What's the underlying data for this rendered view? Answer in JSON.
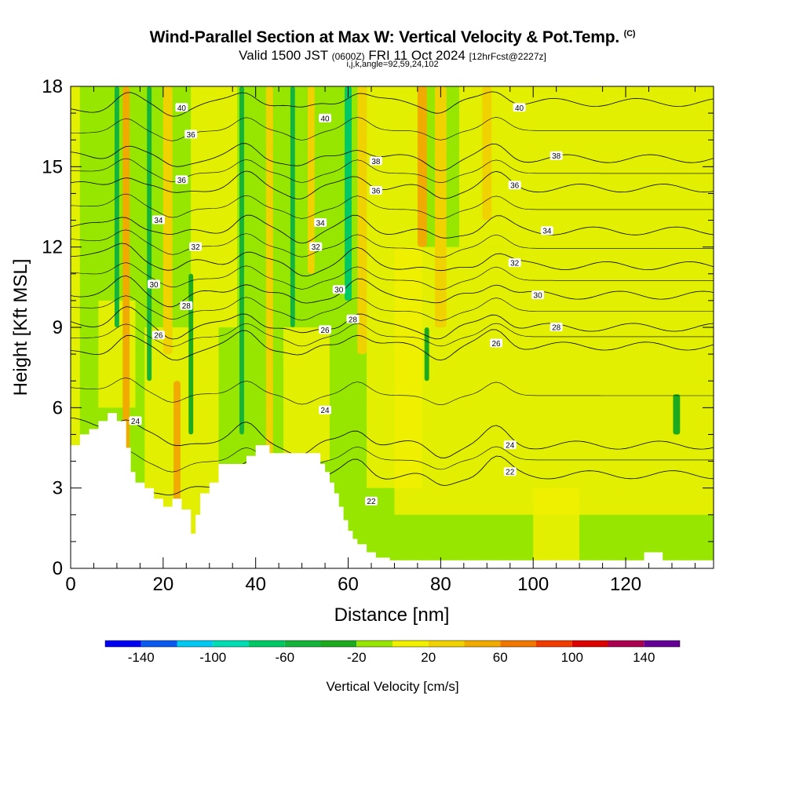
{
  "title": {
    "main": "Wind-Parallel Section at Max W: Vertical Velocity & Pot.Temp.",
    "copyright": "(C)",
    "valid_prefix": "Valid 1500 JST",
    "valid_utc": "(0600Z)",
    "valid_date": "FRI 11 Oct 2024",
    "forecast": "[12hrFcst@2227z]",
    "indices": "i,j,k,angle=92,59,24,102"
  },
  "chart_data": {
    "type": "heatmap",
    "xlabel": "Distance [nm]",
    "ylabel": "Height [Kft MSL]",
    "xlim": [
      0,
      139
    ],
    "ylim": [
      0,
      18
    ],
    "x_ticks": [
      "0",
      "20",
      "40",
      "60",
      "80",
      "100",
      "120"
    ],
    "y_ticks": [
      "0",
      "3",
      "6",
      "9",
      "12",
      "15",
      "18"
    ],
    "colorbar": {
      "title": "Vertical Velocity [cm/s]",
      "labels": [
        "-140",
        "-100",
        "-60",
        "-20",
        "20",
        "60",
        "100",
        "140"
      ],
      "bins": [
        -160,
        -140,
        -120,
        -100,
        -80,
        -60,
        -40,
        -20,
        0,
        20,
        40,
        60,
        80,
        100,
        120,
        140,
        160
      ],
      "colors": [
        "#0000f0",
        "#0a5af0",
        "#00c8f0",
        "#00dcb4",
        "#00c864",
        "#14b43c",
        "#1eaa1e",
        "#96e600",
        "#f0f000",
        "#f0d200",
        "#f0aa00",
        "#f07800",
        "#f03c00",
        "#dc0000",
        "#aa0050",
        "#640096"
      ]
    },
    "terrain": [
      [
        0,
        4.6
      ],
      [
        2,
        4.6
      ],
      [
        2,
        5.0
      ],
      [
        4,
        5.0
      ],
      [
        4,
        5.2
      ],
      [
        6,
        5.2
      ],
      [
        6,
        5.5
      ],
      [
        8,
        5.5
      ],
      [
        8,
        5.8
      ],
      [
        10,
        5.8
      ],
      [
        10,
        5.5
      ],
      [
        12,
        5.5
      ],
      [
        12,
        4.5
      ],
      [
        13,
        4.5
      ],
      [
        13,
        3.6
      ],
      [
        14,
        3.6
      ],
      [
        14,
        3.2
      ],
      [
        16,
        3.2
      ],
      [
        16,
        3.0
      ],
      [
        18,
        3.0
      ],
      [
        18,
        2.6
      ],
      [
        20,
        2.6
      ],
      [
        20,
        2.3
      ],
      [
        22,
        2.3
      ],
      [
        22,
        2.6
      ],
      [
        24,
        2.6
      ],
      [
        24,
        2.2
      ],
      [
        26,
        2.2
      ],
      [
        26,
        1.3
      ],
      [
        27,
        1.3
      ],
      [
        27,
        2.0
      ],
      [
        28,
        2.0
      ],
      [
        28,
        2.8
      ],
      [
        30,
        2.8
      ],
      [
        30,
        3.2
      ],
      [
        32,
        3.2
      ],
      [
        32,
        3.9
      ],
      [
        38,
        3.9
      ],
      [
        38,
        4.2
      ],
      [
        40,
        4.2
      ],
      [
        40,
        4.6
      ],
      [
        43,
        4.6
      ],
      [
        43,
        4.3
      ],
      [
        54,
        4.3
      ],
      [
        54,
        3.9
      ],
      [
        55,
        3.9
      ],
      [
        55,
        3.6
      ],
      [
        56,
        3.6
      ],
      [
        56,
        3.2
      ],
      [
        57,
        3.2
      ],
      [
        57,
        2.8
      ],
      [
        58,
        2.8
      ],
      [
        58,
        2.3
      ],
      [
        59,
        2.3
      ],
      [
        59,
        1.8
      ],
      [
        60,
        1.8
      ],
      [
        60,
        1.4
      ],
      [
        61,
        1.4
      ],
      [
        61,
        1.1
      ],
      [
        62,
        1.1
      ],
      [
        62,
        0.9
      ],
      [
        64,
        0.9
      ],
      [
        64,
        0.6
      ],
      [
        66,
        0.6
      ],
      [
        66,
        0.4
      ],
      [
        69,
        0.4
      ],
      [
        69,
        0.3
      ],
      [
        124,
        0.3
      ],
      [
        124,
        0.6
      ],
      [
        128,
        0.6
      ],
      [
        128,
        0.3
      ],
      [
        139,
        0.3
      ],
      [
        139,
        0
      ]
    ],
    "theta_contours": [
      {
        "label": "22",
        "y": 3.5,
        "y0": 2.0
      },
      {
        "label": "24",
        "y": 4.6,
        "y0": 5.5
      },
      {
        "label": "26",
        "y": 8.3,
        "y0": 8.0
      },
      {
        "label": "28",
        "y": 9.0,
        "y0": 9.2
      },
      {
        "label": "30",
        "y": 10.2,
        "y0": 10.3
      },
      {
        "label": "32",
        "y": 11.3,
        "y0": 11.8
      },
      {
        "label": "34",
        "y": 12.6,
        "y0": 12.8
      },
      {
        "label": "36",
        "y": 14.2,
        "y0": 14.3
      },
      {
        "label": "38",
        "y": 15.3,
        "y0": 15.4
      },
      {
        "label": "40",
        "y": 17.4,
        "y0": 17.1
      }
    ],
    "contour_labels": [
      {
        "t": "40",
        "x": 24,
        "y": 17.2
      },
      {
        "t": "36",
        "x": 26,
        "y": 16.2
      },
      {
        "t": "36",
        "x": 24,
        "y": 14.5
      },
      {
        "t": "34",
        "x": 19,
        "y": 13.0
      },
      {
        "t": "32",
        "x": 27,
        "y": 12.0
      },
      {
        "t": "30",
        "x": 18,
        "y": 10.6
      },
      {
        "t": "28",
        "x": 25,
        "y": 9.8
      },
      {
        "t": "26",
        "x": 19,
        "y": 8.7
      },
      {
        "t": "24",
        "x": 14,
        "y": 5.5
      },
      {
        "t": "40",
        "x": 55,
        "y": 16.8
      },
      {
        "t": "38",
        "x": 66,
        "y": 15.2
      },
      {
        "t": "36",
        "x": 66,
        "y": 14.1
      },
      {
        "t": "34",
        "x": 54,
        "y": 12.9
      },
      {
        "t": "32",
        "x": 53,
        "y": 12.0
      },
      {
        "t": "30",
        "x": 58,
        "y": 10.4
      },
      {
        "t": "28",
        "x": 61,
        "y": 9.3
      },
      {
        "t": "26",
        "x": 55,
        "y": 8.9
      },
      {
        "t": "24",
        "x": 55,
        "y": 5.9
      },
      {
        "t": "22",
        "x": 65,
        "y": 2.5
      },
      {
        "t": "40",
        "x": 97,
        "y": 17.2
      },
      {
        "t": "38",
        "x": 105,
        "y": 15.4
      },
      {
        "t": "36",
        "x": 96,
        "y": 14.3
      },
      {
        "t": "34",
        "x": 103,
        "y": 12.6
      },
      {
        "t": "32",
        "x": 96,
        "y": 11.4
      },
      {
        "t": "30",
        "x": 101,
        "y": 10.2
      },
      {
        "t": "28",
        "x": 105,
        "y": 9.0
      },
      {
        "t": "26",
        "x": 92,
        "y": 8.4
      },
      {
        "t": "24",
        "x": 95,
        "y": 4.6
      },
      {
        "t": "22",
        "x": 95,
        "y": 3.6
      }
    ],
    "updrafts": [
      {
        "x": 12,
        "ymin": 0,
        "ymax": 18,
        "w": 40,
        "width": 1.5
      },
      {
        "x": 23,
        "ymin": 0,
        "ymax": 7,
        "w": 55,
        "width": 1.5
      },
      {
        "x": 21,
        "ymin": 8,
        "ymax": 18,
        "w": 30,
        "width": 2.0
      },
      {
        "x": 43,
        "ymin": 4,
        "ymax": 18,
        "w": 35,
        "width": 1.5
      },
      {
        "x": 52,
        "ymin": 11,
        "ymax": 18,
        "w": 30,
        "width": 1.5
      },
      {
        "x": 63,
        "ymin": 8,
        "ymax": 18,
        "w": 25,
        "width": 2.0
      },
      {
        "x": 76,
        "ymin": 12,
        "ymax": 18,
        "w": 45,
        "width": 2.0
      },
      {
        "x": 80,
        "ymin": 9,
        "ymax": 18,
        "w": 30,
        "width": 2.5
      },
      {
        "x": 90,
        "ymin": 13,
        "ymax": 18,
        "w": 25,
        "width": 2.0
      }
    ],
    "downdrafts": [
      {
        "x": 10,
        "ymin": 9,
        "ymax": 18,
        "w": -45,
        "width": 1.0
      },
      {
        "x": 17,
        "ymin": 7,
        "ymax": 18,
        "w": -50,
        "width": 1.0
      },
      {
        "x": 26,
        "ymin": 5,
        "ymax": 11,
        "w": -35,
        "width": 1.0
      },
      {
        "x": 37,
        "ymin": 5,
        "ymax": 18,
        "w": -50,
        "width": 1.0
      },
      {
        "x": 48,
        "ymin": 9,
        "ymax": 18,
        "w": -55,
        "width": 1.0
      },
      {
        "x": 60,
        "ymin": 10,
        "ymax": 18,
        "w": -75,
        "width": 1.5
      },
      {
        "x": 77,
        "ymin": 7,
        "ymax": 9,
        "w": -30,
        "width": 1.0
      },
      {
        "x": 131,
        "ymin": 5,
        "ymax": 6.5,
        "w": -30,
        "width": 1.5
      }
    ],
    "grid": false
  }
}
